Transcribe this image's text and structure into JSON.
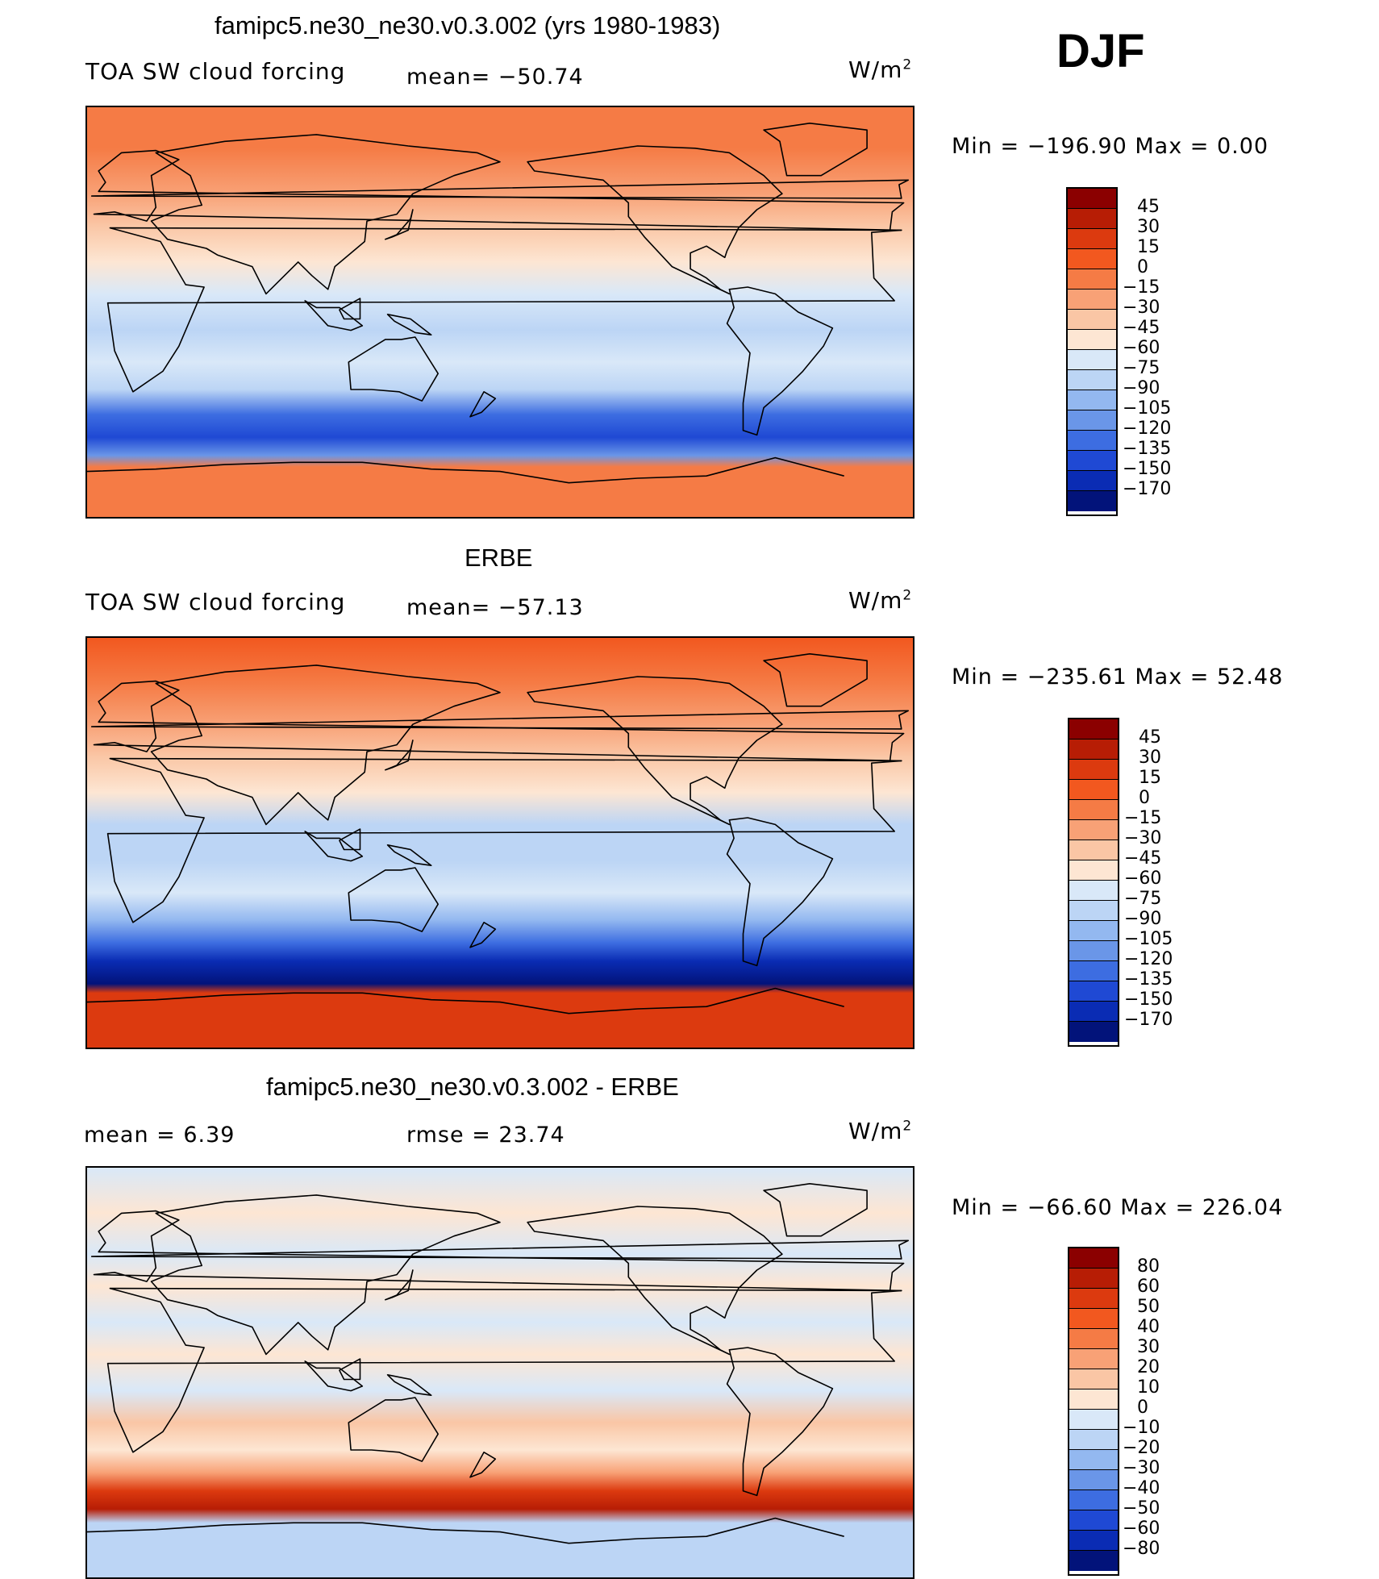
{
  "season": "DJF",
  "panels": [
    {
      "id": "model",
      "title": "famipc5.ne30_ne30.v0.3.002 (yrs 1980-1983)",
      "left_label": "TOA SW cloud forcing",
      "center_label": "mean=  −50.74",
      "units_base": "W/m",
      "units_sup": "2",
      "minmax": "Min  =  −196.90  Max  =     0.00",
      "levels": [
        "45",
        "30",
        "15",
        "0",
        "−15",
        "−30",
        "−45",
        "−60",
        "−75",
        "−90",
        "−105",
        "−120",
        "−135",
        "−150",
        "−170"
      ],
      "colors": [
        "#8b0000",
        "#b71d05",
        "#dc3a0f",
        "#f2581f",
        "#f57b45",
        "#f8a176",
        "#fac6a5",
        "#fde6d3",
        "#d9e8f8",
        "#bcd5f5",
        "#93b8f0",
        "#6a96e8",
        "#3d6de1",
        "#1f49d4",
        "#0a2cb4",
        "#02137a"
      ],
      "bands": [
        {
          "lat": 90,
          "level": 4
        },
        {
          "lat": 72,
          "level": 4
        },
        {
          "lat": 52,
          "level": 5
        },
        {
          "lat": 38,
          "level": 6
        },
        {
          "lat": 22,
          "level": 7
        },
        {
          "lat": 8,
          "level": 8
        },
        {
          "lat": -8,
          "level": 9
        },
        {
          "lat": -22,
          "level": 8
        },
        {
          "lat": -34,
          "level": 9
        },
        {
          "lat": -45,
          "level": 12
        },
        {
          "lat": -55,
          "level": 13
        },
        {
          "lat": -63,
          "level": 11
        },
        {
          "lat": -68,
          "level": 4
        },
        {
          "lat": -90,
          "level": 4
        }
      ]
    },
    {
      "id": "obs",
      "title": "ERBE",
      "left_label": "TOA SW cloud forcing",
      "center_label": "mean=  −57.13",
      "units_base": "W/m",
      "units_sup": "2",
      "minmax": "Min  =  −235.61  Max  =   52.48",
      "levels": [
        "45",
        "30",
        "15",
        "0",
        "−15",
        "−30",
        "−45",
        "−60",
        "−75",
        "−90",
        "−105",
        "−120",
        "−135",
        "−150",
        "−170"
      ],
      "colors": [
        "#8b0000",
        "#b71d05",
        "#dc3a0f",
        "#f2581f",
        "#f57b45",
        "#f8a176",
        "#fac6a5",
        "#fde6d3",
        "#d9e8f8",
        "#bcd5f5",
        "#93b8f0",
        "#6a96e8",
        "#3d6de1",
        "#1f49d4",
        "#0a2cb4",
        "#02137a"
      ],
      "bands": [
        {
          "lat": 90,
          "level": 3
        },
        {
          "lat": 70,
          "level": 4
        },
        {
          "lat": 52,
          "level": 5
        },
        {
          "lat": 38,
          "level": 6
        },
        {
          "lat": 22,
          "level": 7
        },
        {
          "lat": 8,
          "level": 9
        },
        {
          "lat": -8,
          "level": 9
        },
        {
          "lat": -22,
          "level": 8
        },
        {
          "lat": -34,
          "level": 10
        },
        {
          "lat": -44,
          "level": 12
        },
        {
          "lat": -52,
          "level": 14
        },
        {
          "lat": -62,
          "level": 15
        },
        {
          "lat": -66,
          "level": 2
        },
        {
          "lat": -90,
          "level": 2
        }
      ]
    },
    {
      "id": "diff",
      "title": "famipc5.ne30_ne30.v0.3.002 - ERBE",
      "left_label": "mean  =     6.39",
      "center_label": "rmse  =    23.74",
      "units_base": "W/m",
      "units_sup": "2",
      "minmax": "Min  =  −66.60  Max  =  226.04",
      "levels": [
        "80",
        "60",
        "50",
        "40",
        "30",
        "20",
        "10",
        "0",
        "−10",
        "−20",
        "−30",
        "−40",
        "−50",
        "−60",
        "−80"
      ],
      "colors": [
        "#8b0000",
        "#b71d05",
        "#dc3a0f",
        "#f2581f",
        "#f57b45",
        "#f8a176",
        "#fac6a5",
        "#fde6d3",
        "#d9e8f8",
        "#bcd5f5",
        "#93b8f0",
        "#6a96e8",
        "#3d6de1",
        "#1f49d4",
        "#0a2cb4",
        "#02137a"
      ],
      "bands": [
        {
          "lat": 90,
          "level": 8
        },
        {
          "lat": 70,
          "level": 7
        },
        {
          "lat": 52,
          "level": 8
        },
        {
          "lat": 38,
          "level": 7
        },
        {
          "lat": 22,
          "level": 8
        },
        {
          "lat": 8,
          "level": 7
        },
        {
          "lat": -8,
          "level": 8
        },
        {
          "lat": -22,
          "level": 6
        },
        {
          "lat": -34,
          "level": 7
        },
        {
          "lat": -44,
          "level": 5
        },
        {
          "lat": -52,
          "level": 2
        },
        {
          "lat": -60,
          "level": 1
        },
        {
          "lat": -66,
          "level": 9
        },
        {
          "lat": -90,
          "level": 9
        }
      ]
    }
  ]
}
